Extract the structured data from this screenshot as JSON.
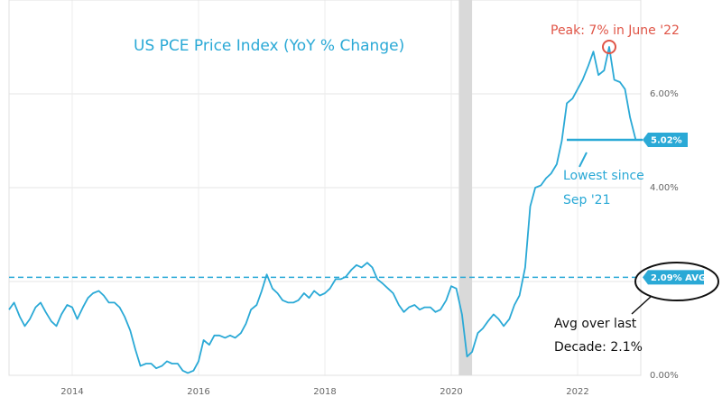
{
  "chart_data": {
    "type": "line",
    "title": "US PCE Price Index (YoY % Change)",
    "xlabel": "",
    "ylabel": "",
    "x_ticks": [
      "2014",
      "2016",
      "2018",
      "2020",
      "2022"
    ],
    "y_ticks": [
      "0.00%",
      "4.00%",
      "6.00%"
    ],
    "ylim": [
      0,
      8
    ],
    "xlim": [
      2013.0,
      2023.0
    ],
    "grid": true,
    "recession_shading": [
      2020.12,
      2020.33
    ],
    "average": {
      "value": 2.09,
      "label": "2.09% AVG"
    },
    "last_value": {
      "value": 5.02,
      "label": "5.02%"
    },
    "series": [
      {
        "values": [
          [
            2013.0,
            1.4
          ],
          [
            2013.08,
            1.55
          ],
          [
            2013.17,
            1.25
          ],
          [
            2013.25,
            1.05
          ],
          [
            2013.33,
            1.2
          ],
          [
            2013.42,
            1.45
          ],
          [
            2013.5,
            1.55
          ],
          [
            2013.58,
            1.35
          ],
          [
            2013.67,
            1.15
          ],
          [
            2013.75,
            1.05
          ],
          [
            2013.83,
            1.3
          ],
          [
            2013.92,
            1.5
          ],
          [
            2014.0,
            1.45
          ],
          [
            2014.08,
            1.2
          ],
          [
            2014.17,
            1.45
          ],
          [
            2014.25,
            1.65
          ],
          [
            2014.33,
            1.75
          ],
          [
            2014.42,
            1.8
          ],
          [
            2014.5,
            1.7
          ],
          [
            2014.58,
            1.55
          ],
          [
            2014.67,
            1.55
          ],
          [
            2014.75,
            1.45
          ],
          [
            2014.83,
            1.25
          ],
          [
            2014.92,
            0.95
          ],
          [
            2015.0,
            0.55
          ],
          [
            2015.08,
            0.2
          ],
          [
            2015.17,
            0.25
          ],
          [
            2015.25,
            0.25
          ],
          [
            2015.33,
            0.15
          ],
          [
            2015.42,
            0.2
          ],
          [
            2015.5,
            0.3
          ],
          [
            2015.58,
            0.25
          ],
          [
            2015.67,
            0.25
          ],
          [
            2015.75,
            0.1
          ],
          [
            2015.83,
            0.05
          ],
          [
            2015.92,
            0.1
          ],
          [
            2016.0,
            0.3
          ],
          [
            2016.08,
            0.75
          ],
          [
            2016.17,
            0.65
          ],
          [
            2016.25,
            0.85
          ],
          [
            2016.33,
            0.85
          ],
          [
            2016.42,
            0.8
          ],
          [
            2016.5,
            0.85
          ],
          [
            2016.58,
            0.8
          ],
          [
            2016.67,
            0.9
          ],
          [
            2016.75,
            1.1
          ],
          [
            2016.83,
            1.4
          ],
          [
            2016.92,
            1.5
          ],
          [
            2017.0,
            1.8
          ],
          [
            2017.08,
            2.15
          ],
          [
            2017.17,
            1.85
          ],
          [
            2017.25,
            1.75
          ],
          [
            2017.33,
            1.6
          ],
          [
            2017.42,
            1.55
          ],
          [
            2017.5,
            1.55
          ],
          [
            2017.58,
            1.6
          ],
          [
            2017.67,
            1.75
          ],
          [
            2017.75,
            1.65
          ],
          [
            2017.83,
            1.8
          ],
          [
            2017.92,
            1.7
          ],
          [
            2018.0,
            1.75
          ],
          [
            2018.08,
            1.85
          ],
          [
            2018.17,
            2.05
          ],
          [
            2018.25,
            2.05
          ],
          [
            2018.33,
            2.1
          ],
          [
            2018.42,
            2.25
          ],
          [
            2018.5,
            2.35
          ],
          [
            2018.58,
            2.3
          ],
          [
            2018.67,
            2.4
          ],
          [
            2018.75,
            2.3
          ],
          [
            2018.83,
            2.05
          ],
          [
            2018.92,
            1.95
          ],
          [
            2019.0,
            1.85
          ],
          [
            2019.08,
            1.75
          ],
          [
            2019.17,
            1.5
          ],
          [
            2019.25,
            1.35
          ],
          [
            2019.33,
            1.45
          ],
          [
            2019.42,
            1.5
          ],
          [
            2019.5,
            1.4
          ],
          [
            2019.58,
            1.45
          ],
          [
            2019.67,
            1.45
          ],
          [
            2019.75,
            1.35
          ],
          [
            2019.83,
            1.4
          ],
          [
            2019.92,
            1.6
          ],
          [
            2020.0,
            1.9
          ],
          [
            2020.08,
            1.85
          ],
          [
            2020.17,
            1.3
          ],
          [
            2020.25,
            0.4
          ],
          [
            2020.33,
            0.5
          ],
          [
            2020.42,
            0.9
          ],
          [
            2020.5,
            1.0
          ],
          [
            2020.58,
            1.15
          ],
          [
            2020.67,
            1.3
          ],
          [
            2020.75,
            1.2
          ],
          [
            2020.83,
            1.05
          ],
          [
            2020.92,
            1.2
          ],
          [
            2021.0,
            1.5
          ],
          [
            2021.08,
            1.7
          ],
          [
            2021.17,
            2.3
          ],
          [
            2021.25,
            3.6
          ],
          [
            2021.33,
            4.0
          ],
          [
            2021.42,
            4.05
          ],
          [
            2021.5,
            4.2
          ],
          [
            2021.58,
            4.3
          ],
          [
            2021.67,
            4.5
          ],
          [
            2021.75,
            5.0
          ],
          [
            2021.83,
            5.8
          ],
          [
            2021.92,
            5.9
          ],
          [
            2022.0,
            6.1
          ],
          [
            2022.08,
            6.3
          ],
          [
            2022.17,
            6.6
          ],
          [
            2022.25,
            6.9
          ],
          [
            2022.33,
            6.4
          ],
          [
            2022.42,
            6.5
          ],
          [
            2022.5,
            7.0
          ],
          [
            2022.58,
            6.3
          ],
          [
            2022.67,
            6.25
          ],
          [
            2022.75,
            6.1
          ],
          [
            2022.83,
            5.5
          ],
          [
            2022.92,
            5.02
          ]
        ]
      }
    ],
    "annotations": [
      {
        "text": "Peak: 7% in June '22",
        "x": 2022.5,
        "y": 7.0
      },
      {
        "text": "Lowest since",
        "x": 2022.0,
        "y": 5.02
      },
      {
        "text": "Sep '21",
        "x": 2022.0,
        "y": 5.02
      },
      {
        "text": "Avg over last",
        "x": 2022.5,
        "y": 2.09
      },
      {
        "text": "Decade: 2.1%",
        "x": 2022.5,
        "y": 2.09
      }
    ]
  }
}
